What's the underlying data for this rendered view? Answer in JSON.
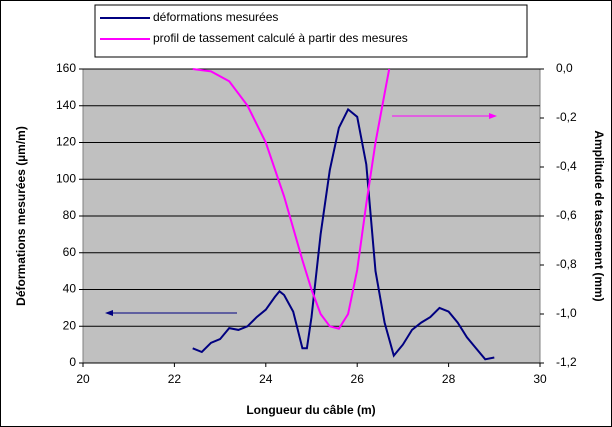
{
  "chart_data": {
    "type": "line",
    "xlabel": "Longueur du câble (m)",
    "ylabel": "Déformations mesurées (µm/m)",
    "y2label": "Amplitude de tassement (mm)",
    "xlim": [
      20,
      30
    ],
    "xticks": [
      20,
      22,
      24,
      26,
      28,
      30
    ],
    "ylim": [
      0,
      160
    ],
    "yticks": [
      0,
      20,
      40,
      60,
      80,
      100,
      120,
      140,
      160
    ],
    "y2lim": [
      -1.2,
      0
    ],
    "y2ticks": [
      {
        "value": 0,
        "label": "0,0"
      },
      {
        "value": -0.2,
        "label": "-0,2"
      },
      {
        "value": -0.4,
        "label": "-0,4"
      },
      {
        "value": -0.6,
        "label": "-0,6"
      },
      {
        "value": -0.8,
        "label": "-0,8"
      },
      {
        "value": -1.0,
        "label": "-1,0"
      },
      {
        "value": -1.2,
        "label": "-1,2"
      }
    ],
    "grid": true,
    "series": [
      {
        "name": "déformations mesurées",
        "color": "#000080",
        "x": [
          22.4,
          22.6,
          22.8,
          23.0,
          23.2,
          23.4,
          23.6,
          23.8,
          24.0,
          24.2,
          24.3,
          24.4,
          24.6,
          24.8,
          24.9,
          25.0,
          25.2,
          25.4,
          25.6,
          25.8,
          26.0,
          26.2,
          26.4,
          26.6,
          26.8,
          27.0,
          27.2,
          27.4,
          27.6,
          27.8,
          28.0,
          28.2,
          28.4,
          28.6,
          28.8,
          29.0
        ],
        "values": [
          8,
          6,
          11,
          13,
          19,
          18,
          20,
          25,
          29,
          36,
          39,
          37,
          28,
          8,
          8,
          25,
          70,
          105,
          128,
          138,
          134,
          108,
          50,
          22,
          4,
          10,
          18,
          22,
          25,
          30,
          28,
          22,
          14,
          8,
          2,
          3
        ]
      },
      {
        "name": "profil de tassement calculé à partir des mesures",
        "color": "#ff00ff",
        "axis": "y2",
        "x": [
          22.4,
          22.8,
          23.2,
          23.6,
          24.0,
          24.4,
          24.8,
          25.0,
          25.2,
          25.4,
          25.6,
          25.8,
          26.0,
          26.2,
          26.4,
          26.6,
          26.7
        ],
        "values": [
          0.0,
          -0.01,
          -0.05,
          -0.15,
          -0.3,
          -0.52,
          -0.78,
          -0.9,
          -1.0,
          -1.05,
          -1.06,
          -1.0,
          -0.82,
          -0.55,
          -0.3,
          -0.1,
          0.0
        ]
      }
    ]
  }
}
